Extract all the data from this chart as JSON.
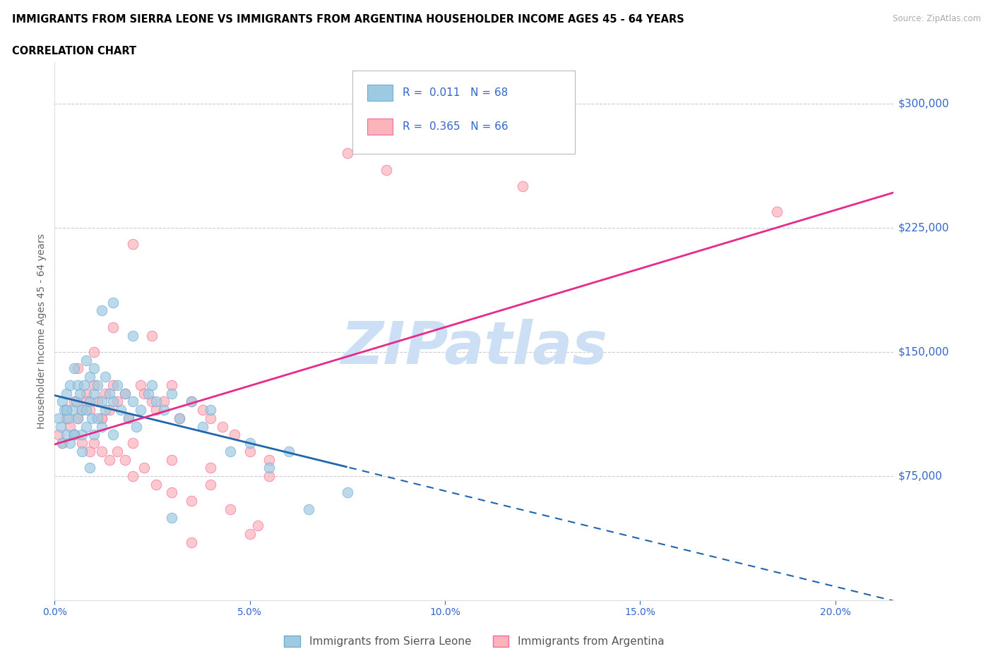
{
  "title_line1": "IMMIGRANTS FROM SIERRA LEONE VS IMMIGRANTS FROM ARGENTINA HOUSEHOLDER INCOME AGES 45 - 64 YEARS",
  "title_line2": "CORRELATION CHART",
  "source": "Source: ZipAtlas.com",
  "ylabel": "Householder Income Ages 45 - 64 years",
  "ylim_max": 325000,
  "xlim_max": 21.5,
  "ytick_vals": [
    75000,
    150000,
    225000,
    300000
  ],
  "ytick_labels": [
    "$75,000",
    "$150,000",
    "$225,000",
    "$300,000"
  ],
  "xtick_vals": [
    0,
    5,
    10,
    15,
    20
  ],
  "legend1_label": "Immigrants from Sierra Leone",
  "legend2_label": "Immigrants from Argentina",
  "r1": 0.011,
  "n1": 68,
  "r2": 0.365,
  "n2": 66,
  "color_blue": "#9ecae1",
  "color_pink": "#fbb4b9",
  "color_blue_edge": "#6baed6",
  "color_pink_edge": "#f768a1",
  "color_blue_line": "#2166ac",
  "color_pink_line": "#e7298a",
  "color_axis_text": "#3366cc",
  "color_label": "#666666",
  "watermark": "ZIPatlas",
  "watermark_color": "#ccdff5",
  "sl_x": [
    0.1,
    0.15,
    0.2,
    0.2,
    0.25,
    0.3,
    0.3,
    0.35,
    0.4,
    0.4,
    0.45,
    0.5,
    0.5,
    0.55,
    0.6,
    0.6,
    0.65,
    0.7,
    0.7,
    0.75,
    0.8,
    0.8,
    0.8,
    0.9,
    0.9,
    0.95,
    1.0,
    1.0,
    1.0,
    1.1,
    1.1,
    1.2,
    1.2,
    1.3,
    1.3,
    1.4,
    1.5,
    1.5,
    1.6,
    1.7,
    1.8,
    1.9,
    2.0,
    2.1,
    2.2,
    2.4,
    2.5,
    2.6,
    2.8,
    3.0,
    3.2,
    3.5,
    3.8,
    4.0,
    4.5,
    5.0,
    5.5,
    6.0,
    6.5,
    7.5,
    0.3,
    0.5,
    0.7,
    0.9,
    1.2,
    1.5,
    2.0,
    3.0
  ],
  "sl_y": [
    110000,
    105000,
    120000,
    95000,
    115000,
    125000,
    100000,
    110000,
    130000,
    95000,
    115000,
    140000,
    100000,
    120000,
    130000,
    110000,
    125000,
    115000,
    100000,
    130000,
    145000,
    115000,
    105000,
    135000,
    120000,
    110000,
    140000,
    125000,
    100000,
    130000,
    110000,
    120000,
    105000,
    135000,
    115000,
    125000,
    120000,
    100000,
    130000,
    115000,
    125000,
    110000,
    120000,
    105000,
    115000,
    125000,
    130000,
    120000,
    115000,
    125000,
    110000,
    120000,
    105000,
    115000,
    90000,
    95000,
    80000,
    90000,
    55000,
    65000,
    115000,
    100000,
    90000,
    80000,
    175000,
    180000,
    160000,
    50000
  ],
  "ar_x": [
    0.1,
    0.2,
    0.3,
    0.4,
    0.5,
    0.6,
    0.7,
    0.8,
    0.9,
    1.0,
    1.1,
    1.2,
    1.3,
    1.4,
    1.5,
    1.6,
    1.8,
    1.9,
    2.0,
    2.2,
    2.3,
    2.5,
    2.6,
    2.8,
    3.0,
    3.2,
    3.5,
    3.8,
    4.0,
    4.3,
    4.6,
    5.0,
    5.5,
    0.3,
    0.5,
    0.7,
    0.9,
    1.0,
    1.2,
    1.4,
    1.6,
    1.8,
    2.0,
    2.3,
    2.6,
    3.0,
    3.5,
    4.0,
    4.5,
    5.2,
    0.8,
    1.2,
    2.0,
    3.0,
    4.0,
    5.5,
    7.5,
    8.5,
    12.0,
    18.5,
    0.6,
    1.0,
    1.5,
    2.5,
    3.5,
    5.0
  ],
  "ar_y": [
    100000,
    95000,
    110000,
    105000,
    120000,
    110000,
    115000,
    125000,
    115000,
    130000,
    120000,
    110000,
    125000,
    115000,
    130000,
    120000,
    125000,
    110000,
    215000,
    130000,
    125000,
    120000,
    115000,
    120000,
    130000,
    110000,
    120000,
    115000,
    110000,
    105000,
    100000,
    90000,
    85000,
    115000,
    100000,
    95000,
    90000,
    95000,
    90000,
    85000,
    90000,
    85000,
    75000,
    80000,
    70000,
    65000,
    60000,
    70000,
    55000,
    45000,
    120000,
    110000,
    95000,
    85000,
    80000,
    75000,
    270000,
    260000,
    250000,
    235000,
    140000,
    150000,
    165000,
    160000,
    35000,
    40000
  ]
}
